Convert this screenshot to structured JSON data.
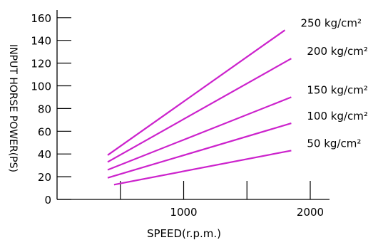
{
  "chart_data": {
    "type": "line",
    "title": "",
    "xlabel": "SPEED(r.p.m.)",
    "ylabel": "INPUT HORSE POWER(PS)",
    "xlim": [
      0,
      2200
    ],
    "ylim": [
      0,
      165
    ],
    "x_ticks": [
      {
        "value": 500,
        "label": ""
      },
      {
        "value": 1000,
        "label": "1000"
      },
      {
        "value": 1500,
        "label": ""
      },
      {
        "value": 2000,
        "label": "2000"
      }
    ],
    "y_ticks": [
      {
        "value": 0,
        "label": "0"
      },
      {
        "value": 20,
        "label": "20"
      },
      {
        "value": 40,
        "label": "40"
      },
      {
        "value": 60,
        "label": "60"
      },
      {
        "value": 80,
        "label": "80"
      },
      {
        "value": 100,
        "label": "100"
      },
      {
        "value": 120,
        "label": "120"
      },
      {
        "value": 140,
        "label": "140"
      },
      {
        "value": 160,
        "label": "160"
      }
    ],
    "grid": false,
    "legend": "none",
    "line_color": "#cc22cc",
    "series": [
      {
        "name": "250 kg/cm²",
        "x": [
          400,
          1800
        ],
        "y": [
          39,
          149
        ]
      },
      {
        "name": "200 kg/cm²",
        "x": [
          400,
          1850
        ],
        "y": [
          33,
          124
        ]
      },
      {
        "name": "150 kg/cm²",
        "x": [
          400,
          1850
        ],
        "y": [
          26,
          90
        ]
      },
      {
        "name": "100 kg/cm²",
        "x": [
          400,
          1850
        ],
        "y": [
          19,
          67
        ]
      },
      {
        "name": "50 kg/cm²",
        "x": [
          450,
          1850
        ],
        "y": [
          13,
          43
        ]
      }
    ]
  }
}
